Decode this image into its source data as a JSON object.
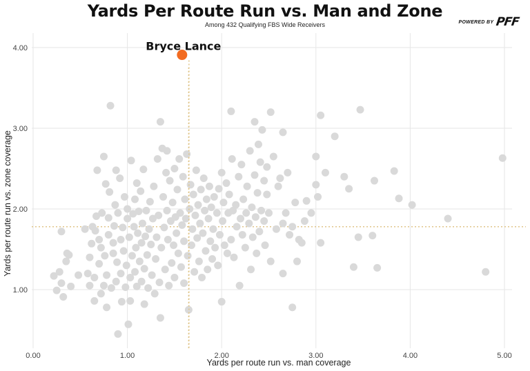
{
  "header": {
    "title": "Yards Per Route Run vs. Man and Zone",
    "subtitle": "Among 432 Qualifying FBS Wide Receivers",
    "brand_powered": "POWERED BY",
    "brand_logo": "PFF"
  },
  "colors": {
    "point": "#d9d9d9",
    "highlight": "#f26b21",
    "reference_line": "#e0c58a",
    "grid": "#e6e6e6"
  },
  "chart_data": {
    "type": "scatter",
    "title": "Yards Per Route Run vs. Man and Zone",
    "subtitle": "Among 432 Qualifying FBS Wide Receivers",
    "xlabel": "Yards per route run vs. man coverage",
    "ylabel": "Yards per route run vs. zone coverage",
    "xlim": [
      -0.05,
      5.1
    ],
    "ylim": [
      0.35,
      4.1
    ],
    "xticks": [
      "0.00",
      "1.00",
      "2.00",
      "3.00",
      "4.00",
      "5.00"
    ],
    "yticks": [
      "1.00",
      "2.00",
      "3.00",
      "4.00"
    ],
    "grid": true,
    "reference_lines": {
      "x": 1.65,
      "y": 1.78
    },
    "highlight": {
      "name": "Bryce Lance",
      "x": 1.58,
      "y": 3.91
    },
    "points_visible": [
      [
        0.22,
        1.17
      ],
      [
        0.25,
        0.99
      ],
      [
        0.28,
        1.22
      ],
      [
        0.3,
        1.08
      ],
      [
        0.3,
        1.72
      ],
      [
        0.32,
        0.91
      ],
      [
        0.35,
        1.35
      ],
      [
        0.36,
        1.45
      ],
      [
        0.38,
        1.43
      ],
      [
        0.4,
        1.04
      ],
      [
        0.48,
        1.18
      ],
      [
        0.55,
        1.75
      ],
      [
        0.58,
        1.2
      ],
      [
        0.6,
        1.05
      ],
      [
        0.6,
        1.4
      ],
      [
        0.62,
        1.57
      ],
      [
        0.63,
        1.78
      ],
      [
        0.65,
        0.86
      ],
      [
        0.65,
        1.15
      ],
      [
        0.66,
        1.73
      ],
      [
        0.67,
        1.91
      ],
      [
        0.68,
        2.48
      ],
      [
        0.7,
        1.62
      ],
      [
        0.7,
        1.32
      ],
      [
        0.72,
        0.95
      ],
      [
        0.72,
        1.52
      ],
      [
        0.73,
        1.95
      ],
      [
        0.75,
        2.65
      ],
      [
        0.75,
        1.05
      ],
      [
        0.76,
        1.42
      ],
      [
        0.77,
        2.31
      ],
      [
        0.78,
        1.18
      ],
      [
        0.78,
        0.78
      ],
      [
        0.8,
        1.68
      ],
      [
        0.8,
        1.89
      ],
      [
        0.81,
        2.21
      ],
      [
        0.82,
        3.28
      ],
      [
        0.83,
        1.02
      ],
      [
        0.85,
        1.45
      ],
      [
        0.85,
        1.58
      ],
      [
        0.86,
        1.79
      ],
      [
        0.87,
        2.05
      ],
      [
        0.88,
        1.1
      ],
      [
        0.88,
        2.48
      ],
      [
        0.89,
        1.34
      ],
      [
        0.9,
        0.45
      ],
      [
        0.9,
        1.95
      ],
      [
        0.92,
        2.38
      ],
      [
        0.93,
        1.2
      ],
      [
        0.93,
        1.62
      ],
      [
        0.94,
        0.85
      ],
      [
        0.95,
        1.77
      ],
      [
        0.96,
        1.48
      ],
      [
        0.97,
        2.15
      ],
      [
        0.98,
        1.03
      ],
      [
        0.99,
        1.3
      ],
      [
        1.0,
        1.88
      ],
      [
        1.0,
        2.0
      ],
      [
        1.01,
        0.57
      ],
      [
        1.02,
        1.65
      ],
      [
        1.03,
        1.15
      ],
      [
        1.03,
        0.86
      ],
      [
        1.04,
        2.6
      ],
      [
        1.05,
        1.42
      ],
      [
        1.06,
        1.94
      ],
      [
        1.07,
        1.78
      ],
      [
        1.08,
        1.22
      ],
      [
        1.08,
        2.12
      ],
      [
        1.09,
        1.52
      ],
      [
        1.1,
        1.04
      ],
      [
        1.1,
        2.32
      ],
      [
        1.11,
        1.7
      ],
      [
        1.12,
        1.97
      ],
      [
        1.13,
        1.35
      ],
      [
        1.14,
        2.22
      ],
      [
        1.15,
        1.1
      ],
      [
        1.15,
        1.58
      ],
      [
        1.16,
        1.82
      ],
      [
        1.17,
        2.49
      ],
      [
        1.18,
        0.82
      ],
      [
        1.18,
        1.26
      ],
      [
        1.19,
        1.66
      ],
      [
        1.2,
        1.98
      ],
      [
        1.21,
        1.43
      ],
      [
        1.22,
        1.02
      ],
      [
        1.23,
        1.75
      ],
      [
        1.24,
        2.09
      ],
      [
        1.25,
        1.56
      ],
      [
        1.26,
        1.18
      ],
      [
        1.27,
        1.88
      ],
      [
        1.28,
        2.28
      ],
      [
        1.29,
        0.95
      ],
      [
        1.3,
        1.38
      ],
      [
        1.31,
        1.65
      ],
      [
        1.32,
        2.62
      ],
      [
        1.33,
        1.92
      ],
      [
        1.34,
        1.09
      ],
      [
        1.35,
        3.08
      ],
      [
        1.35,
        0.65
      ],
      [
        1.36,
        1.52
      ],
      [
        1.37,
        2.75
      ],
      [
        1.38,
        2.15
      ],
      [
        1.39,
        1.77
      ],
      [
        1.4,
        1.25
      ],
      [
        1.41,
        2.45
      ],
      [
        1.42,
        2.72
      ],
      [
        1.42,
        1.98
      ],
      [
        1.43,
        1.62
      ],
      [
        1.44,
        1.05
      ],
      [
        1.45,
        2.35
      ],
      [
        1.46,
        1.85
      ],
      [
        1.47,
        1.33
      ],
      [
        1.48,
        2.08
      ],
      [
        1.49,
        1.55
      ],
      [
        1.5,
        2.5
      ],
      [
        1.5,
        1.15
      ],
      [
        1.51,
        1.9
      ],
      [
        1.52,
        1.7
      ],
      [
        1.53,
        2.24
      ],
      [
        1.54,
        1.45
      ],
      [
        1.55,
        2.62
      ],
      [
        1.56,
        1.95
      ],
      [
        1.57,
        1.28
      ],
      [
        1.58,
        1.8
      ],
      [
        1.59,
        2.4
      ],
      [
        1.6,
        1.6
      ],
      [
        1.6,
        1.08
      ],
      [
        1.61,
        2.12
      ],
      [
        1.62,
        1.88
      ],
      [
        1.63,
        2.68
      ],
      [
        1.64,
        1.42
      ],
      [
        1.65,
        0.75
      ],
      [
        1.66,
        2.0
      ],
      [
        1.67,
        2.3
      ],
      [
        1.68,
        1.55
      ],
      [
        1.69,
        1.75
      ],
      [
        1.7,
        2.18
      ],
      [
        1.71,
        1.22
      ],
      [
        1.72,
        1.92
      ],
      [
        1.73,
        2.48
      ],
      [
        1.74,
        1.64
      ],
      [
        1.75,
        2.05
      ],
      [
        1.76,
        1.35
      ],
      [
        1.77,
        1.82
      ],
      [
        1.78,
        2.24
      ],
      [
        1.79,
        1.15
      ],
      [
        1.8,
        1.7
      ],
      [
        1.81,
        2.38
      ],
      [
        1.82,
        1.98
      ],
      [
        1.83,
        1.48
      ],
      [
        1.84,
        2.12
      ],
      [
        1.85,
        1.25
      ],
      [
        1.86,
        1.88
      ],
      [
        1.87,
        2.28
      ],
      [
        1.88,
        1.6
      ],
      [
        1.89,
        2.02
      ],
      [
        1.9,
        1.38
      ],
      [
        1.91,
        1.75
      ],
      [
        1.92,
        2.15
      ],
      [
        1.93,
        1.52
      ],
      [
        1.95,
        1.95
      ],
      [
        1.96,
        1.3
      ],
      [
        1.97,
        2.25
      ],
      [
        1.98,
        1.68
      ],
      [
        2.0,
        2.45
      ],
      [
        2.0,
        0.85
      ],
      [
        2.01,
        1.85
      ],
      [
        2.02,
        2.08
      ],
      [
        2.03,
        1.55
      ],
      [
        2.05,
        2.32
      ],
      [
        2.06,
        1.45
      ],
      [
        2.07,
        1.95
      ],
      [
        2.08,
        2.18
      ],
      [
        2.1,
        3.21
      ],
      [
        2.1,
        1.62
      ],
      [
        2.11,
        2.62
      ],
      [
        2.12,
        1.98
      ],
      [
        2.13,
        1.4
      ],
      [
        2.15,
        2.05
      ],
      [
        2.16,
        1.78
      ],
      [
        2.18,
        2.4
      ],
      [
        2.19,
        1.05
      ],
      [
        2.2,
        1.88
      ],
      [
        2.21,
        2.55
      ],
      [
        2.22,
        1.68
      ],
      [
        2.23,
        2.12
      ],
      [
        2.25,
        1.52
      ],
      [
        2.26,
        1.95
      ],
      [
        2.27,
        2.28
      ],
      [
        2.29,
        1.82
      ],
      [
        2.3,
        2.72
      ],
      [
        2.31,
        1.25
      ],
      [
        2.32,
        2.02
      ],
      [
        2.33,
        1.65
      ],
      [
        2.35,
        3.08
      ],
      [
        2.35,
        2.42
      ],
      [
        2.36,
        1.9
      ],
      [
        2.37,
        1.45
      ],
      [
        2.38,
        2.2
      ],
      [
        2.39,
        2.8
      ],
      [
        2.4,
        1.72
      ],
      [
        2.41,
        2.58
      ],
      [
        2.42,
        1.98
      ],
      [
        2.43,
        2.98
      ],
      [
        2.45,
        1.85
      ],
      [
        2.45,
        2.35
      ],
      [
        2.46,
        1.55
      ],
      [
        2.48,
        2.18
      ],
      [
        2.48,
        2.52
      ],
      [
        2.5,
        1.95
      ],
      [
        2.52,
        3.2
      ],
      [
        2.52,
        1.35
      ],
      [
        2.55,
        2.65
      ],
      [
        2.58,
        1.75
      ],
      [
        2.6,
        2.28
      ],
      [
        2.62,
        2.38
      ],
      [
        2.65,
        1.82
      ],
      [
        2.65,
        1.2
      ],
      [
        2.65,
        2.95
      ],
      [
        2.68,
        1.95
      ],
      [
        2.7,
        2.45
      ],
      [
        2.72,
        1.68
      ],
      [
        2.75,
        0.78
      ],
      [
        2.75,
        1.78
      ],
      [
        2.78,
        2.08
      ],
      [
        2.8,
        1.35
      ],
      [
        2.82,
        1.62
      ],
      [
        2.85,
        1.58
      ],
      [
        2.88,
        1.85
      ],
      [
        2.9,
        2.1
      ],
      [
        2.95,
        1.95
      ],
      [
        3.0,
        2.3
      ],
      [
        3.0,
        2.65
      ],
      [
        3.02,
        2.15
      ],
      [
        3.05,
        3.16
      ],
      [
        3.05,
        1.58
      ],
      [
        3.1,
        2.45
      ],
      [
        3.2,
        2.9
      ],
      [
        3.3,
        2.4
      ],
      [
        3.35,
        2.25
      ],
      [
        3.4,
        1.28
      ],
      [
        3.45,
        1.65
      ],
      [
        3.47,
        3.23
      ],
      [
        3.6,
        1.67
      ],
      [
        3.62,
        2.35
      ],
      [
        3.65,
        1.27
      ],
      [
        3.83,
        2.47
      ],
      [
        3.88,
        2.13
      ],
      [
        4.02,
        2.05
      ],
      [
        4.4,
        1.88
      ],
      [
        4.8,
        1.22
      ],
      [
        4.98,
        2.63
      ]
    ]
  }
}
